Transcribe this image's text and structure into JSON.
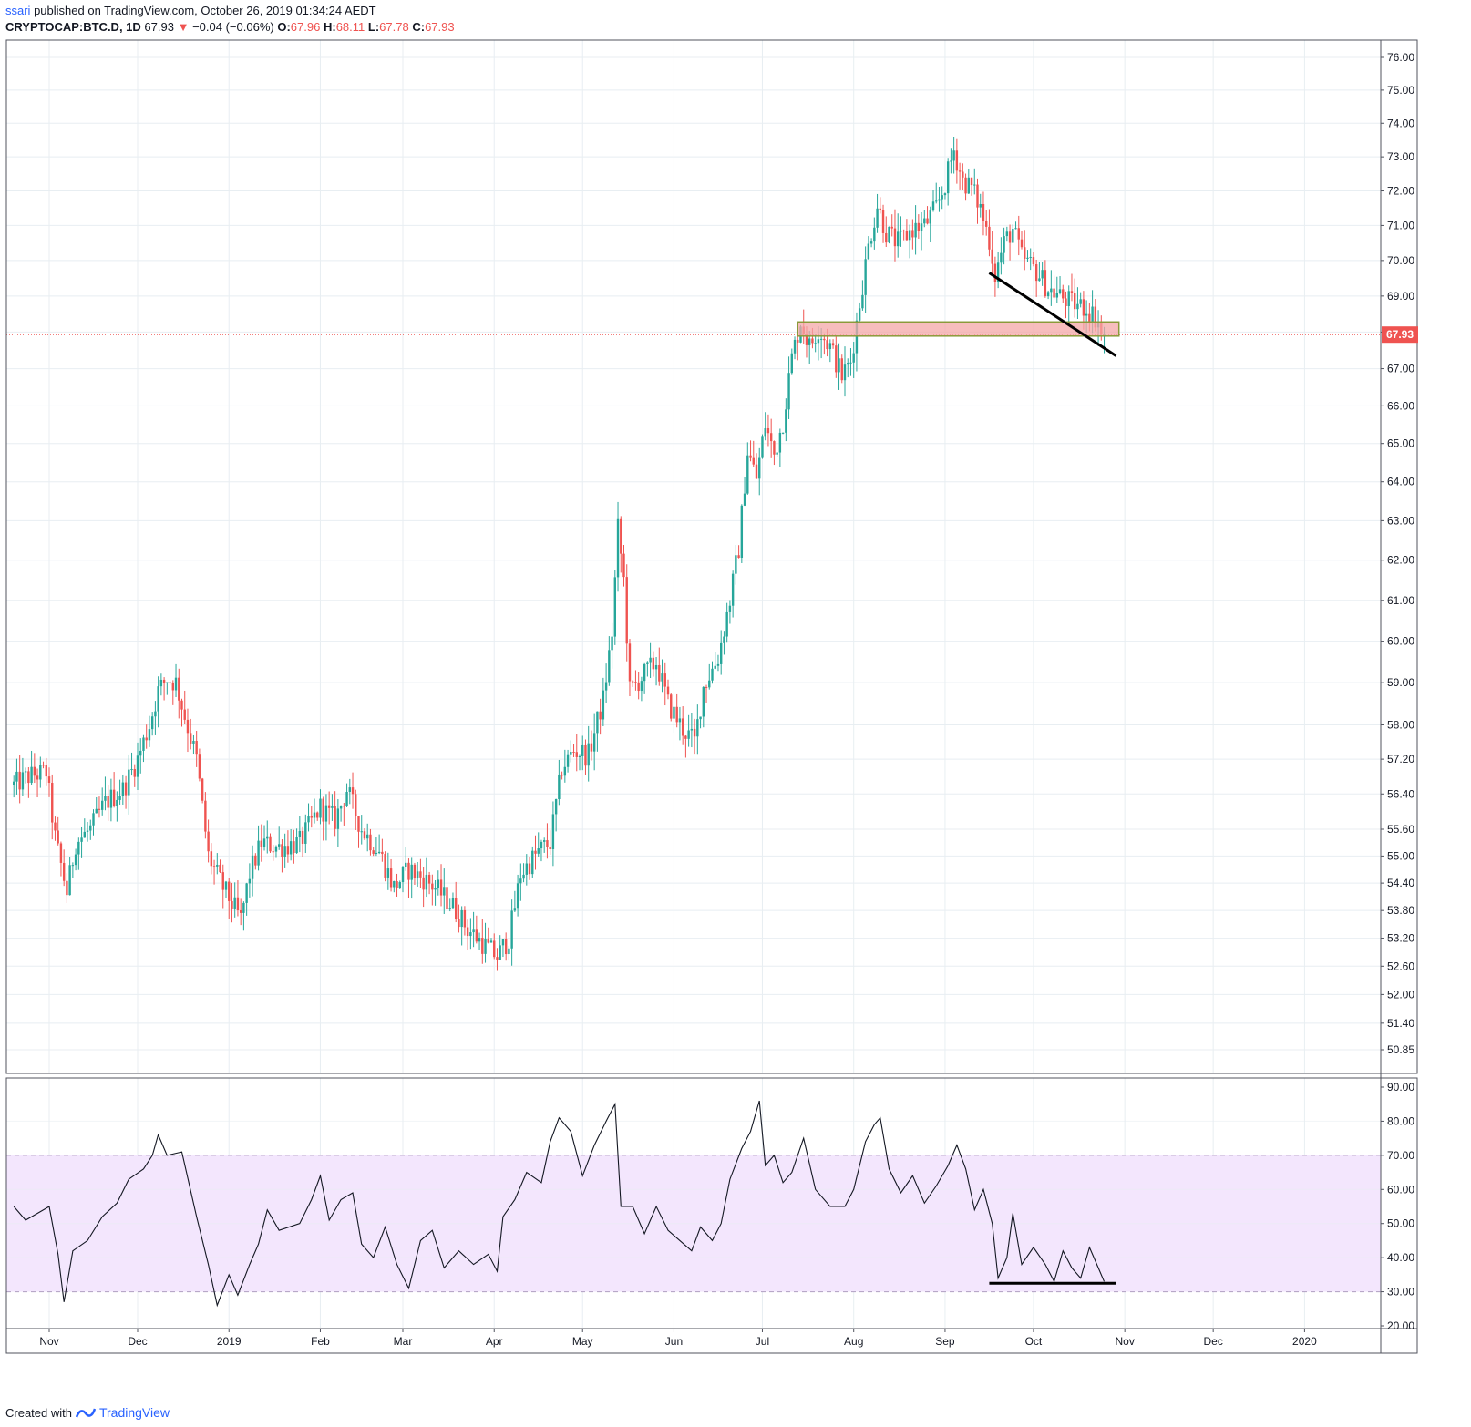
{
  "header": {
    "author": "ssari",
    "published": " published on TradingView.com, October 26, 2019 01:34:24 AEDT",
    "symbol": "CRYPTOCAP:BTC.D, 1D",
    "last": "67.93",
    "change_arrow": "▼",
    "change": "−0.04 (−0.06%)",
    "o_label": "O:",
    "o_value": "67.96",
    "h_label": "H:",
    "h_value": "68.11",
    "l_label": "L:",
    "l_value": "67.78",
    "c_label": "C:",
    "c_value": "67.93"
  },
  "footer": {
    "created_with": "Created with",
    "brand": "TradingView"
  },
  "colors": {
    "up": "#26a69a",
    "down": "#ef5350",
    "grid": "#e8eef2",
    "rsi_band": "#f3e6fd",
    "zone_fill": "#f4a7a7",
    "zone_border": "#8a9a3a",
    "price_line": "#ef5350"
  },
  "chart_data": [
    {
      "type": "candlestick",
      "title": "CRYPTOCAP:BTC.D, 1D",
      "ylabel": "",
      "xlabel": "",
      "scale": "log",
      "y_ticks": [
        "76.00",
        "75.00",
        "74.00",
        "73.00",
        "72.00",
        "71.00",
        "70.00",
        "69.00",
        "68.00",
        "67.00",
        "66.00",
        "65.00",
        "64.00",
        "63.00",
        "62.00",
        "61.00",
        "60.00",
        "59.00",
        "58.00",
        "57.20",
        "56.40",
        "55.60",
        "55.00",
        "54.40",
        "53.80",
        "53.20",
        "52.60",
        "52.00",
        "51.40",
        "50.85"
      ],
      "x_ticks": [
        "Nov",
        "Dec",
        "2019",
        "Feb",
        "Mar",
        "Apr",
        "May",
        "Jun",
        "Jul",
        "Aug",
        "Sep",
        "Oct",
        "Nov",
        "Dec",
        "2020"
      ],
      "last_price_label": "67.93",
      "grid": true,
      "close_path": [
        [
          "2018-10-20",
          56.6
        ],
        [
          "2018-10-25",
          56.8
        ],
        [
          "2018-10-31",
          56.9
        ],
        [
          "2018-11-03",
          55.4
        ],
        [
          "2018-11-07",
          54.2
        ],
        [
          "2018-11-10",
          55.3
        ],
        [
          "2018-11-15",
          55.6
        ],
        [
          "2018-11-20",
          56.2
        ],
        [
          "2018-11-26",
          56.5
        ],
        [
          "2018-12-01",
          57.2
        ],
        [
          "2018-12-05",
          58.0
        ],
        [
          "2018-12-08",
          58.8
        ],
        [
          "2018-12-11",
          59.1
        ],
        [
          "2018-12-14",
          59.0
        ],
        [
          "2018-12-17",
          58.2
        ],
        [
          "2018-12-21",
          57.2
        ],
        [
          "2018-12-25",
          55.0
        ],
        [
          "2018-12-30",
          54.3
        ],
        [
          "2019-01-05",
          53.6
        ],
        [
          "2019-01-08",
          54.6
        ],
        [
          "2019-01-12",
          55.3
        ],
        [
          "2019-01-18",
          55.2
        ],
        [
          "2019-01-25",
          55.3
        ],
        [
          "2019-02-01",
          56.1
        ],
        [
          "2019-02-06",
          55.8
        ],
        [
          "2019-02-10",
          56.5
        ],
        [
          "2019-02-15",
          55.6
        ],
        [
          "2019-02-21",
          55.1
        ],
        [
          "2019-02-26",
          54.3
        ],
        [
          "2019-03-03",
          54.7
        ],
        [
          "2019-03-08",
          54.5
        ],
        [
          "2019-03-12",
          54.3
        ],
        [
          "2019-03-18",
          53.9
        ],
        [
          "2019-03-23",
          53.4
        ],
        [
          "2019-03-28",
          53.1
        ],
        [
          "2019-04-02",
          52.8
        ],
        [
          "2019-04-06",
          53.2
        ],
        [
          "2019-04-10",
          54.6
        ],
        [
          "2019-04-16",
          55.1
        ],
        [
          "2019-04-20",
          55.3
        ],
        [
          "2019-04-24",
          57.0
        ],
        [
          "2019-04-28",
          57.4
        ],
        [
          "2019-05-03",
          57.3
        ],
        [
          "2019-05-08",
          58.6
        ],
        [
          "2019-05-11",
          60.2
        ],
        [
          "2019-05-13",
          62.8
        ],
        [
          "2019-05-15",
          61.5
        ],
        [
          "2019-05-17",
          58.8
        ],
        [
          "2019-05-22",
          59.2
        ],
        [
          "2019-05-26",
          59.5
        ],
        [
          "2019-05-30",
          58.5
        ],
        [
          "2019-06-04",
          57.9
        ],
        [
          "2019-06-08",
          57.6
        ],
        [
          "2019-06-11",
          58.9
        ],
        [
          "2019-06-16",
          59.6
        ],
        [
          "2019-06-20",
          61.0
        ],
        [
          "2019-06-23",
          62.3
        ],
        [
          "2019-06-26",
          64.8
        ],
        [
          "2019-06-29",
          64.1
        ],
        [
          "2019-07-02",
          65.5
        ],
        [
          "2019-07-05",
          64.7
        ],
        [
          "2019-07-08",
          65.6
        ],
        [
          "2019-07-11",
          67.3
        ],
        [
          "2019-07-14",
          68.3
        ],
        [
          "2019-07-17",
          67.6
        ],
        [
          "2019-07-20",
          68.1
        ],
        [
          "2019-07-24",
          67.6
        ],
        [
          "2019-07-28",
          66.8
        ],
        [
          "2019-07-31",
          67.2
        ],
        [
          "2019-08-03",
          68.8
        ],
        [
          "2019-08-06",
          70.4
        ],
        [
          "2019-08-09",
          71.6
        ],
        [
          "2019-08-12",
          70.8
        ],
        [
          "2019-08-16",
          70.5
        ],
        [
          "2019-08-21",
          70.9
        ],
        [
          "2019-08-25",
          71.0
        ],
        [
          "2019-08-29",
          71.5
        ],
        [
          "2019-09-01",
          72.2
        ],
        [
          "2019-09-04",
          73.2
        ],
        [
          "2019-09-07",
          72.3
        ],
        [
          "2019-09-10",
          72.1
        ],
        [
          "2019-09-13",
          71.5
        ],
        [
          "2019-09-16",
          70.6
        ],
        [
          "2019-09-18",
          69.6
        ],
        [
          "2019-09-21",
          70.5
        ],
        [
          "2019-09-24",
          70.9
        ],
        [
          "2019-09-27",
          70.1
        ],
        [
          "2019-10-02",
          69.7
        ],
        [
          "2019-10-06",
          69.2
        ],
        [
          "2019-10-10",
          69.0
        ],
        [
          "2019-10-14",
          68.8
        ],
        [
          "2019-10-18",
          68.7
        ],
        [
          "2019-10-21",
          68.5
        ],
        [
          "2019-10-24",
          68.2
        ],
        [
          "2019-10-25",
          67.93
        ]
      ],
      "annotations": [
        {
          "kind": "rectangle",
          "from": [
            "2019-07-13",
            68.28
          ],
          "to": [
            "2019-10-30",
            67.89
          ]
        },
        {
          "kind": "trendline",
          "from": [
            "2019-09-16",
            69.65
          ],
          "to": [
            "2019-10-29",
            67.35
          ]
        }
      ]
    },
    {
      "type": "line",
      "title": "RSI",
      "y_ticks": [
        "90.00",
        "80.00",
        "70.00",
        "60.00",
        "50.00",
        "40.00",
        "30.00",
        "20.00"
      ],
      "ylim": [
        20,
        90
      ],
      "band": [
        30,
        70
      ],
      "series": [
        {
          "values": [
            [
              "2018-10-20",
              55
            ],
            [
              "2018-10-24",
              51
            ],
            [
              "2018-10-28",
              53
            ],
            [
              "2018-11-01",
              55
            ],
            [
              "2018-11-04",
              41
            ],
            [
              "2018-11-06",
              27
            ],
            [
              "2018-11-09",
              42
            ],
            [
              "2018-11-14",
              45
            ],
            [
              "2018-11-19",
              52
            ],
            [
              "2018-11-24",
              56
            ],
            [
              "2018-11-28",
              63
            ],
            [
              "2018-12-03",
              66
            ],
            [
              "2018-12-06",
              70
            ],
            [
              "2018-12-08",
              76
            ],
            [
              "2018-12-11",
              70
            ],
            [
              "2018-12-16",
              71
            ],
            [
              "2018-12-21",
              52
            ],
            [
              "2018-12-25",
              38
            ],
            [
              "2018-12-28",
              26
            ],
            [
              "2019-01-01",
              35
            ],
            [
              "2019-01-04",
              29
            ],
            [
              "2019-01-08",
              38
            ],
            [
              "2019-01-11",
              44
            ],
            [
              "2019-01-14",
              54
            ],
            [
              "2019-01-18",
              48
            ],
            [
              "2019-01-25",
              50
            ],
            [
              "2019-01-29",
              57
            ],
            [
              "2019-02-01",
              64
            ],
            [
              "2019-02-04",
              51
            ],
            [
              "2019-02-08",
              57
            ],
            [
              "2019-02-12",
              59
            ],
            [
              "2019-02-15",
              44
            ],
            [
              "2019-02-19",
              40
            ],
            [
              "2019-02-23",
              49
            ],
            [
              "2019-02-27",
              38
            ],
            [
              "2019-03-03",
              31
            ],
            [
              "2019-03-07",
              45
            ],
            [
              "2019-03-11",
              48
            ],
            [
              "2019-03-15",
              37
            ],
            [
              "2019-03-20",
              42
            ],
            [
              "2019-03-25",
              38
            ],
            [
              "2019-03-30",
              41
            ],
            [
              "2019-04-02",
              36
            ],
            [
              "2019-04-04",
              52
            ],
            [
              "2019-04-08",
              57
            ],
            [
              "2019-04-12",
              65
            ],
            [
              "2019-04-17",
              62
            ],
            [
              "2019-04-20",
              74
            ],
            [
              "2019-04-23",
              81
            ],
            [
              "2019-04-27",
              77
            ],
            [
              "2019-05-01",
              64
            ],
            [
              "2019-05-05",
              73
            ],
            [
              "2019-05-09",
              80
            ],
            [
              "2019-05-12",
              85
            ],
            [
              "2019-05-14",
              55
            ],
            [
              "2019-05-18",
              55
            ],
            [
              "2019-05-22",
              47
            ],
            [
              "2019-05-26",
              55
            ],
            [
              "2019-05-30",
              48
            ],
            [
              "2019-06-03",
              45
            ],
            [
              "2019-06-07",
              42
            ],
            [
              "2019-06-10",
              49
            ],
            [
              "2019-06-14",
              45
            ],
            [
              "2019-06-17",
              50
            ],
            [
              "2019-06-20",
              63
            ],
            [
              "2019-06-24",
              72
            ],
            [
              "2019-06-27",
              77
            ],
            [
              "2019-06-30",
              86
            ],
            [
              "2019-07-02",
              67
            ],
            [
              "2019-07-05",
              70
            ],
            [
              "2019-07-08",
              62
            ],
            [
              "2019-07-11",
              65
            ],
            [
              "2019-07-15",
              75
            ],
            [
              "2019-07-19",
              60
            ],
            [
              "2019-07-24",
              55
            ],
            [
              "2019-07-29",
              55
            ],
            [
              "2019-08-01",
              60
            ],
            [
              "2019-08-05",
              74
            ],
            [
              "2019-08-08",
              79
            ],
            [
              "2019-08-10",
              81
            ],
            [
              "2019-08-13",
              66
            ],
            [
              "2019-08-17",
              59
            ],
            [
              "2019-08-21",
              64
            ],
            [
              "2019-08-25",
              56
            ],
            [
              "2019-08-29",
              61
            ],
            [
              "2019-09-02",
              67
            ],
            [
              "2019-09-05",
              73
            ],
            [
              "2019-09-08",
              66
            ],
            [
              "2019-09-11",
              54
            ],
            [
              "2019-09-14",
              60
            ],
            [
              "2019-09-17",
              50
            ],
            [
              "2019-09-19",
              34
            ],
            [
              "2019-09-22",
              40
            ],
            [
              "2019-09-24",
              53
            ],
            [
              "2019-09-27",
              38
            ],
            [
              "2019-10-01",
              43
            ],
            [
              "2019-10-05",
              38
            ],
            [
              "2019-10-08",
              33
            ],
            [
              "2019-10-11",
              42
            ],
            [
              "2019-10-14",
              37
            ],
            [
              "2019-10-17",
              34
            ],
            [
              "2019-10-20",
              43
            ],
            [
              "2019-10-23",
              37
            ],
            [
              "2019-10-25",
              33
            ]
          ]
        }
      ],
      "annotations": [
        {
          "kind": "horizontal_segment",
          "from": [
            "2019-09-16",
            32.5
          ],
          "to": [
            "2019-10-29",
            32.5
          ]
        }
      ]
    }
  ]
}
